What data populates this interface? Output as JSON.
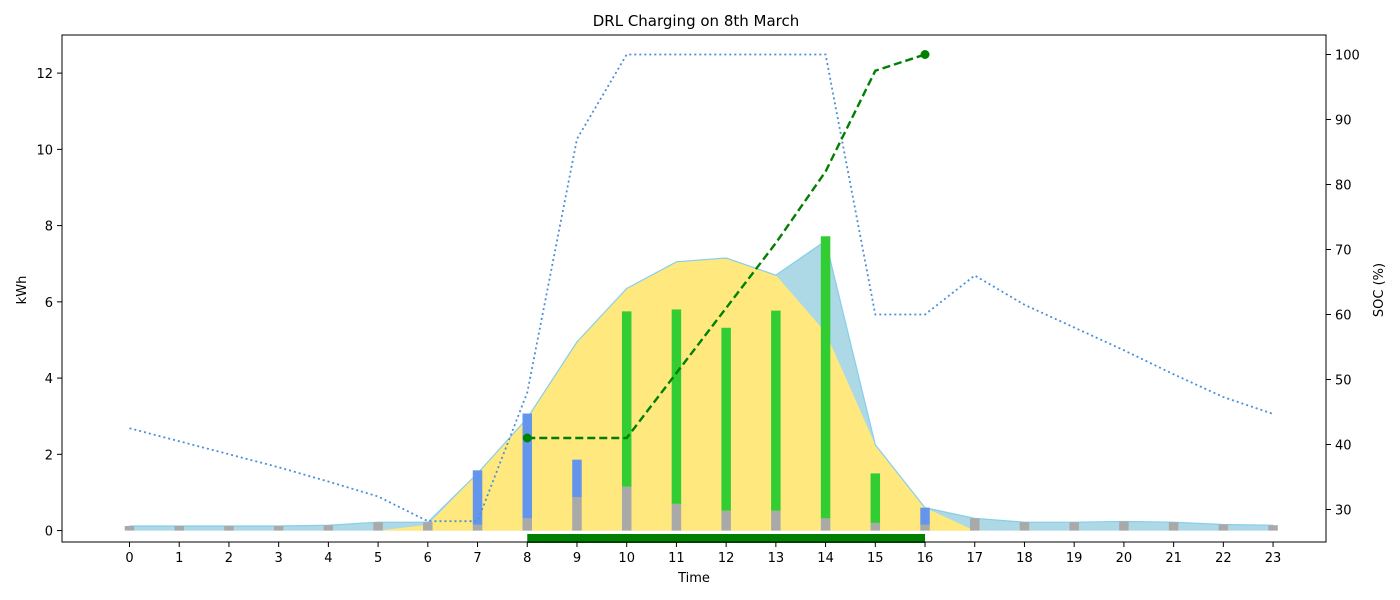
{
  "chart_data": {
    "type": "line",
    "title": "DRL Charging on 8th March",
    "xlabel": "Time",
    "ylabel": "kWh",
    "y2label": "SOC (%)",
    "ylim": [
      -0.3,
      13.0
    ],
    "y2lim": [
      25,
      103
    ],
    "grid": false,
    "x": [
      0,
      1,
      2,
      3,
      4,
      5,
      6,
      7,
      8,
      9,
      10,
      11,
      12,
      13,
      14,
      15,
      16,
      17,
      18,
      19,
      20,
      21,
      22,
      23
    ],
    "xticks": [
      "0",
      "1",
      "2",
      "3",
      "4",
      "5",
      "6",
      "7",
      "8",
      "9",
      "10",
      "11",
      "12",
      "13",
      "14",
      "15",
      "16",
      "17",
      "18",
      "19",
      "20",
      "21",
      "22",
      "23"
    ],
    "yticks": [
      "0",
      "2",
      "4",
      "6",
      "8",
      "10",
      "12"
    ],
    "y2ticks": [
      "30",
      "40",
      "50",
      "60",
      "70",
      "80",
      "90",
      "100"
    ],
    "colors": {
      "demand_area": "#add8e6",
      "pv_area": "#ffe97f",
      "pv_edge": "#87ceeb",
      "base_bar": "#a9a9a9",
      "grid_bar": "#6495ed",
      "pv_bar": "#32cd32",
      "soc_line": "#008000",
      "price_line": "#4a90d9",
      "plugged_bar": "#008000"
    },
    "series": [
      {
        "kind": "area",
        "values": [
          0.12,
          0.12,
          0.12,
          0.12,
          0.14,
          0.22,
          0.22,
          1.5,
          2.95,
          4.95,
          6.35,
          7.05,
          7.15,
          6.7,
          7.6,
          2.25,
          0.6,
          0.32,
          0.22,
          0.22,
          0.24,
          0.22,
          0.16,
          0.14
        ]
      },
      {
        "kind": "area",
        "values": [
          0,
          0,
          0,
          0,
          0,
          0,
          0.15,
          1.5,
          2.95,
          4.95,
          6.35,
          7.05,
          7.15,
          6.7,
          5.2,
          2.25,
          0.6,
          0,
          0,
          0,
          0,
          0,
          0,
          0
        ]
      },
      {
        "kind": "bar",
        "values": [
          0.12,
          0.12,
          0.12,
          0.12,
          0.14,
          0.22,
          0.22,
          0.15,
          0.32,
          0.88,
          1.15,
          0.7,
          0.52,
          0.52,
          0.32,
          0.2,
          0.15,
          0.32,
          0.22,
          0.22,
          0.24,
          0.22,
          0.16,
          0.14
        ]
      },
      {
        "kind": "bar",
        "values": [
          0,
          0,
          0,
          0,
          0,
          0,
          0,
          1.43,
          2.75,
          0.98,
          0,
          0,
          0,
          0,
          0,
          0,
          0.45,
          0,
          0,
          0,
          0,
          0,
          0,
          0
        ]
      },
      {
        "kind": "bar",
        "values": [
          0,
          0,
          0,
          0,
          0,
          0,
          0,
          0,
          0,
          0,
          4.6,
          5.1,
          4.8,
          5.25,
          7.4,
          1.3,
          0,
          0,
          0,
          0,
          0,
          0,
          0,
          0
        ]
      },
      {
        "kind": "line",
        "axis": "right",
        "x": [
          8,
          9,
          10,
          11,
          12,
          13,
          14,
          15,
          16
        ],
        "values": [
          41,
          41,
          41,
          51,
          61,
          71,
          82,
          97.5,
          100
        ]
      },
      {
        "kind": "line",
        "axis": "right",
        "values": [
          42.5,
          40.5,
          38.5,
          36.5,
          34.3,
          32,
          28.2,
          28.2,
          48,
          87,
          100,
          100,
          100,
          100,
          100,
          60,
          60,
          66,
          61.5,
          58,
          54.5,
          50.8,
          47.3,
          44.7
        ]
      }
    ],
    "plugged_interval": [
      8,
      16
    ]
  }
}
